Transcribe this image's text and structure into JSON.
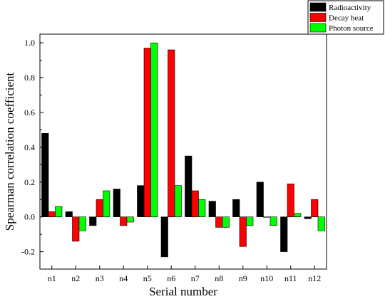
{
  "chart_data": {
    "type": "bar",
    "title": "",
    "xlabel": "Serial number",
    "ylabel": "Spearman correlation coefficient",
    "ylim": [
      -0.3,
      1.05
    ],
    "yticks": [
      -0.2,
      0.0,
      0.2,
      0.4,
      0.6,
      0.8,
      1.0
    ],
    "ytick_labels": [
      "-0.2",
      "0.0",
      "0.2",
      "0.4",
      "0.6",
      "0.8",
      "1.0"
    ],
    "categories": [
      "n1",
      "n2",
      "n3",
      "n4",
      "n5",
      "n6",
      "n7",
      "n8",
      "n9",
      "n10",
      "n11",
      "n12"
    ],
    "legend_position": "top-right",
    "grid": false,
    "series": [
      {
        "name": "Radioactivity",
        "color": "#000000",
        "values": [
          0.48,
          0.03,
          -0.05,
          0.16,
          0.18,
          -0.23,
          0.35,
          0.09,
          0.1,
          0.2,
          -0.2,
          -0.01
        ]
      },
      {
        "name": "Decay heat",
        "color": "#ff0000",
        "values": [
          0.03,
          -0.14,
          0.1,
          -0.05,
          0.97,
          0.96,
          0.15,
          -0.06,
          -0.17,
          0.0,
          0.19,
          0.1
        ]
      },
      {
        "name": "Photon source",
        "color": "#00ff00",
        "values": [
          0.06,
          -0.08,
          0.15,
          -0.03,
          1.0,
          0.18,
          0.1,
          -0.06,
          -0.05,
          -0.05,
          0.02,
          -0.08
        ]
      }
    ]
  }
}
